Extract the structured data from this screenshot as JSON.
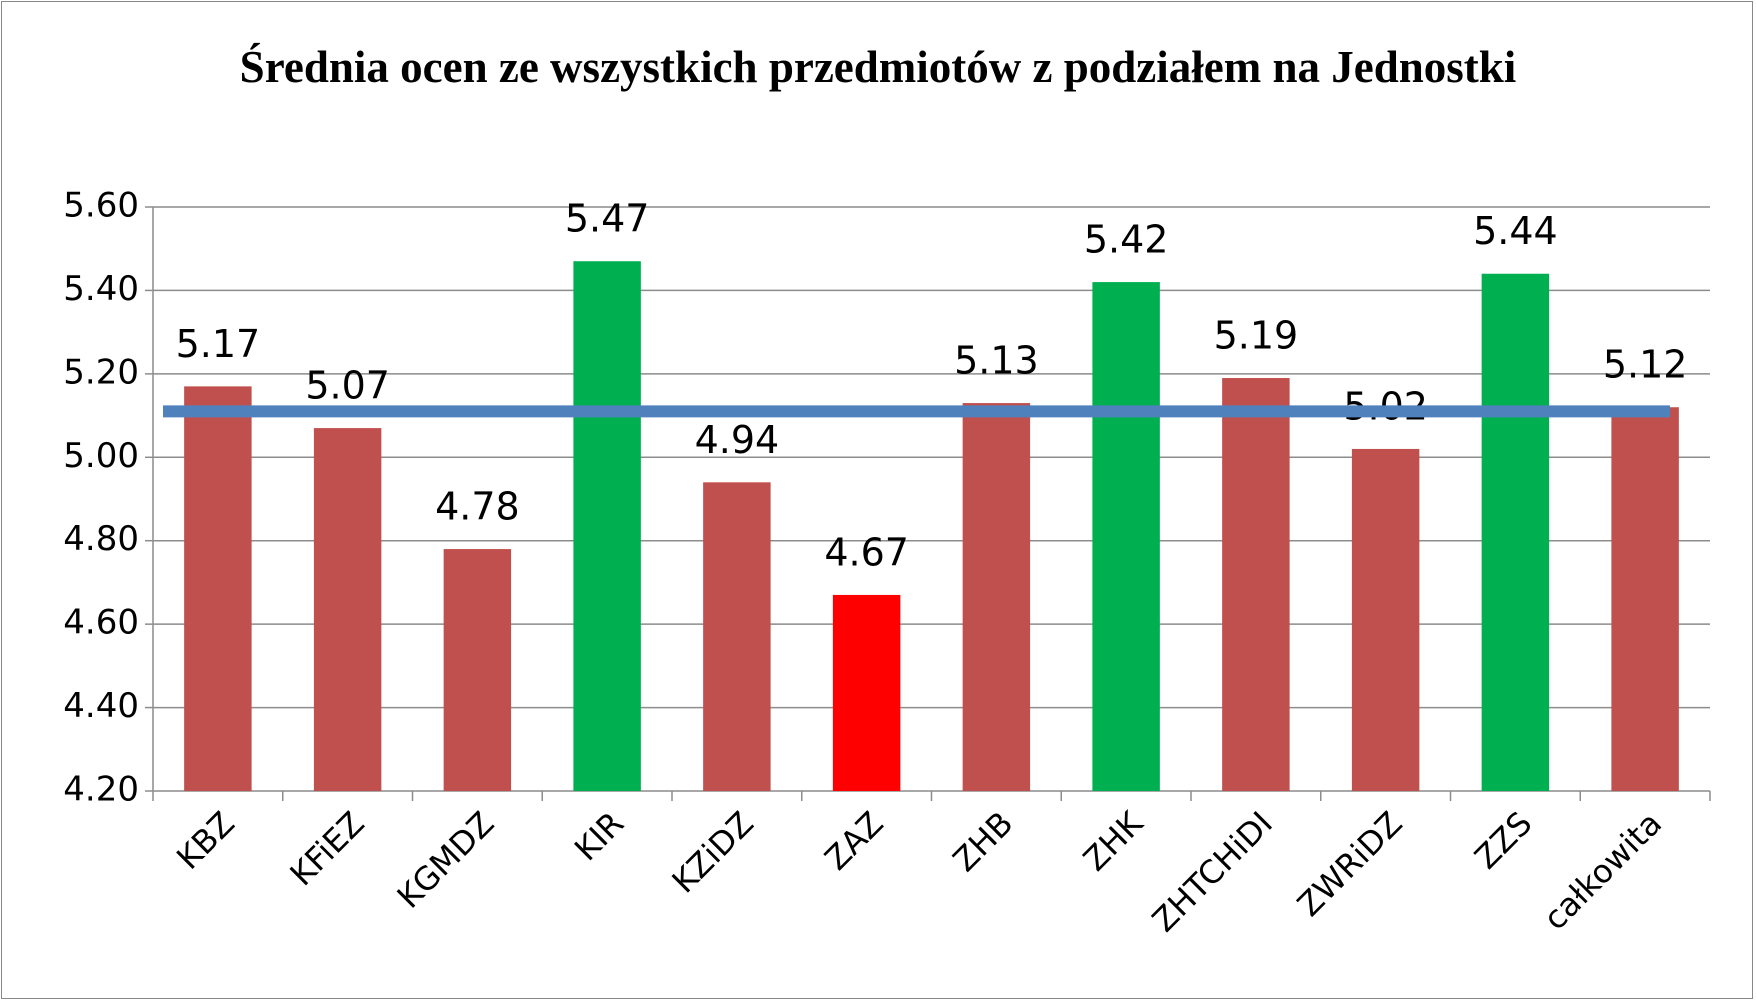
{
  "chart_data": {
    "type": "bar",
    "title": "Średnia ocen ze wszystkich przedmiotów z podziałem na Jednostki",
    "categories": [
      "KBZ",
      "KFiEZ",
      "KGMDZ",
      "KIR",
      "KZiDZ",
      "ZAZ",
      "ZHB",
      "ZHK",
      "ZHTCHiDI",
      "ZWRiDZ",
      "ZZS",
      "całkowita"
    ],
    "values": [
      5.17,
      5.07,
      4.78,
      5.47,
      4.94,
      4.67,
      5.13,
      5.42,
      5.19,
      5.02,
      5.44,
      5.12
    ],
    "colors": [
      "#c0504d",
      "#c0504d",
      "#c0504d",
      "#00b050",
      "#c0504d",
      "#ff0000",
      "#c0504d",
      "#00b050",
      "#c0504d",
      "#c0504d",
      "#00b050",
      "#c0504d"
    ],
    "reference_line": {
      "value": 5.11,
      "color": "#4f81bd"
    },
    "ylim": [
      4.2,
      5.6
    ],
    "yticks": [
      {
        "value": 4.2,
        "label": "4.20"
      },
      {
        "value": 4.4,
        "label": "4.40"
      },
      {
        "value": 4.6,
        "label": "4.60"
      },
      {
        "value": 4.8,
        "label": "4.80"
      },
      {
        "value": 5.0,
        "label": "5.00"
      },
      {
        "value": 5.2,
        "label": "5.20"
      },
      {
        "value": 5.4,
        "label": "5.40"
      },
      {
        "value": 5.6,
        "label": "5.60"
      }
    ],
    "grid": true
  }
}
